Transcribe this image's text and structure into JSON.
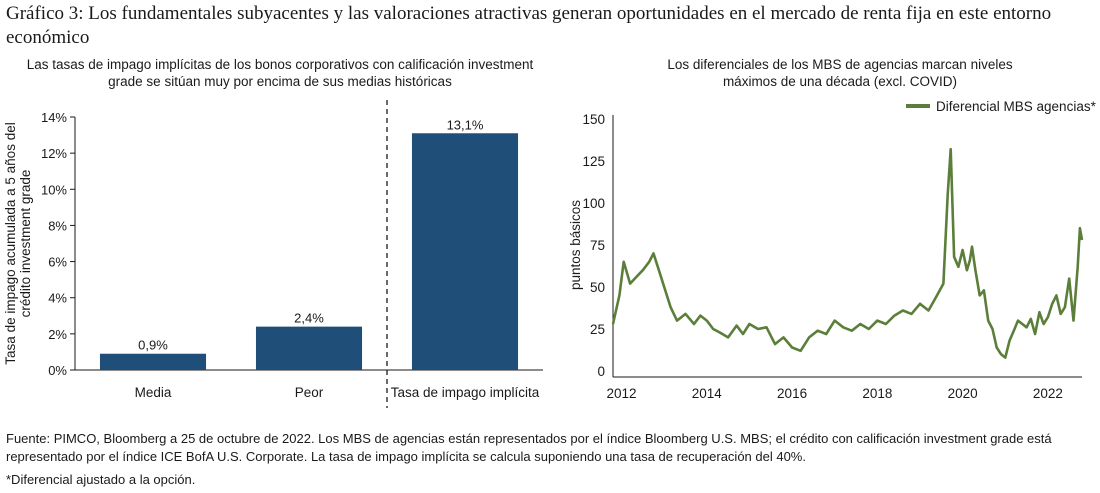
{
  "figure": {
    "title": "Gráfico 3: Los fundamentales subyacentes y las valoraciones atractivas generan oportunidades en el mercado de renta fija en este entorno económico",
    "source": "Fuente: PIMCO, Bloomberg a 25 de octubre de 2022. Los MBS de agencias están representados por el índice Bloomberg U.S. MBS; el crédito con calificación investment grade está representado por el índice ICE BofA U.S. Corporate. La tasa de impago implícita se calcula suponiendo una tasa de recuperación del 40%.",
    "footnote": "*Diferencial ajustado a la opción."
  },
  "left_panel": {
    "title_line1": "Las tasas de impago implícitas de los bonos corporativos con calificación investment",
    "title_line2": "grade se sitúan muy por encima de sus medias históricas"
  },
  "right_panel": {
    "title_line1": "Los diferenciales de los MBS de agencias marcan niveles",
    "title_line2": "máximos de una década (excl. COVID)"
  },
  "chart_data": [
    {
      "type": "bar",
      "categories": [
        "Media",
        "Peor",
        "Tasa de impago implícita"
      ],
      "values": [
        0.9,
        2.4,
        13.1
      ],
      "data_labels": [
        "0,9%",
        "2,4%",
        "13,1%"
      ],
      "ylabel_line1": "Tasa de impago acumulada a 5 años del",
      "ylabel_line2": "crédito investment grade",
      "ylim": [
        0,
        14
      ],
      "yticks": [
        0,
        2,
        4,
        6,
        8,
        10,
        12,
        14
      ],
      "ytick_labels": [
        "0%",
        "2%",
        "4%",
        "6%",
        "8%",
        "10%",
        "12%",
        "14%"
      ],
      "color": "#1f4e79",
      "divider_after_category": 1,
      "grid": false
    },
    {
      "type": "line",
      "series": [
        {
          "name": "Diferencial MBS agencias*",
          "color": "#5b7f3a",
          "x": [
            2011.8,
            2011.95,
            2012.05,
            2012.2,
            2012.35,
            2012.5,
            2012.65,
            2012.75,
            2012.85,
            2013.0,
            2013.15,
            2013.3,
            2013.5,
            2013.7,
            2013.85,
            2014.0,
            2014.15,
            2014.3,
            2014.5,
            2014.7,
            2014.85,
            2015.0,
            2015.2,
            2015.4,
            2015.6,
            2015.8,
            2016.0,
            2016.2,
            2016.4,
            2016.6,
            2016.8,
            2017.0,
            2017.2,
            2017.4,
            2017.6,
            2017.8,
            2018.0,
            2018.2,
            2018.4,
            2018.6,
            2018.8,
            2019.0,
            2019.2,
            2019.4,
            2019.55,
            2019.65,
            2019.72,
            2019.8,
            2019.9,
            2020.0,
            2020.1,
            2020.17,
            2020.22,
            2020.3,
            2020.4,
            2020.5,
            2020.6,
            2020.7,
            2020.8,
            2020.9,
            2021.0,
            2021.1,
            2021.2,
            2021.3,
            2021.4,
            2021.5,
            2021.6,
            2021.7,
            2021.8,
            2021.9,
            2022.0,
            2022.1,
            2022.2,
            2022.3,
            2022.4,
            2022.5,
            2022.6,
            2022.7,
            2022.75,
            2022.8
          ],
          "y": [
            28,
            45,
            65,
            52,
            56,
            60,
            65,
            70,
            62,
            50,
            38,
            30,
            34,
            28,
            33,
            30,
            25,
            23,
            20,
            27,
            22,
            28,
            25,
            26,
            16,
            20,
            14,
            12,
            20,
            24,
            22,
            30,
            26,
            24,
            28,
            25,
            30,
            28,
            33,
            36,
            34,
            40,
            36,
            45,
            52,
            105,
            132,
            68,
            62,
            72,
            60,
            66,
            74,
            60,
            45,
            48,
            30,
            25,
            14,
            10,
            8,
            18,
            24,
            30,
            28,
            26,
            31,
            22,
            35,
            28,
            32,
            40,
            45,
            34,
            38,
            55,
            30,
            62,
            85,
            78
          ]
        }
      ],
      "xlim": [
        2011.8,
        2022.8
      ],
      "xticks": [
        2012,
        2014,
        2016,
        2018,
        2020,
        2022
      ],
      "ylabel": "puntos básicos",
      "ylim": [
        0,
        150
      ],
      "yticks": [
        0,
        25,
        50,
        75,
        100,
        125,
        150
      ],
      "legend": "top-right",
      "grid": false
    }
  ]
}
